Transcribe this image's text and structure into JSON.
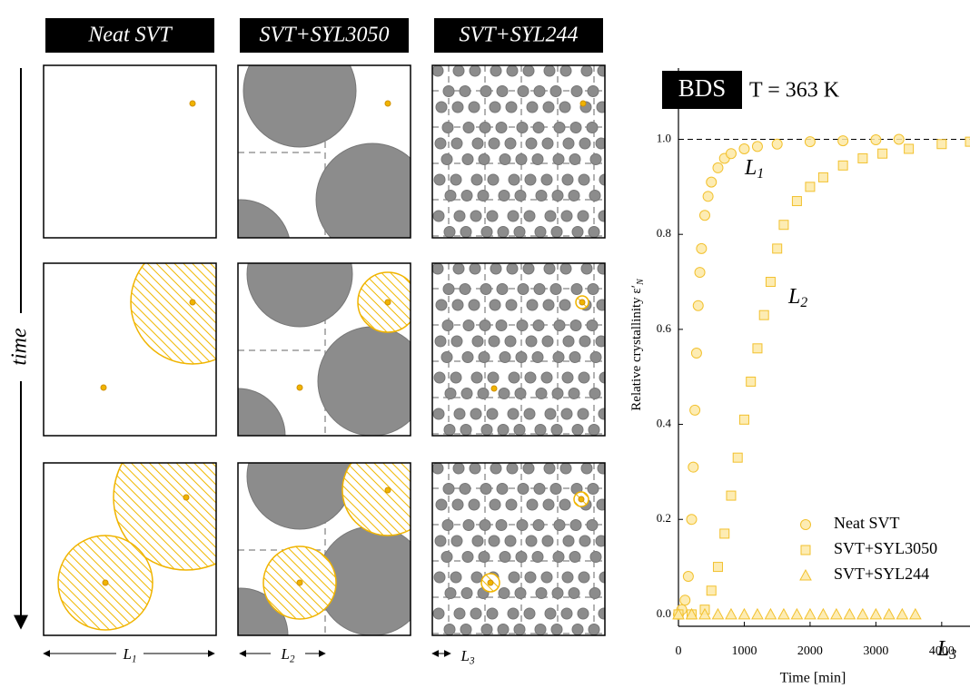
{
  "schematic": {
    "columns": [
      "Neat SVT",
      "SVT+SYL3050",
      "SVT+SYL244"
    ],
    "time_label": "time",
    "scale_labels": [
      {
        "text": "L",
        "sub": "1"
      },
      {
        "text": "L",
        "sub": "2"
      },
      {
        "text": "L",
        "sub": "3"
      }
    ]
  },
  "chart_data": {
    "type": "scatter",
    "badge": "BDS",
    "annotation": "T = 363 K",
    "x_label": "Time [min]",
    "y_label": {
      "text": "Relative crystallinity ε′",
      "sub": "N"
    },
    "xlim": [
      0,
      4430
    ],
    "ylim": [
      -0.025,
      1.15
    ],
    "xticks": [
      0,
      1000,
      2000,
      3000,
      4000
    ],
    "yticks": [
      {
        "value": 0,
        "label": "0.0"
      },
      {
        "value": 0.2,
        "label": "0.2"
      },
      {
        "value": 0.4,
        "label": "0.4"
      },
      {
        "value": 0.6,
        "label": "0.6"
      },
      {
        "value": 0.8,
        "label": "0.8"
      },
      {
        "value": 1,
        "label": "1.0"
      }
    ],
    "reference_line": 1,
    "legend": "lower right",
    "series": [
      {
        "name": "Neat SVT",
        "color": "#f2c12e",
        "marker": "circle",
        "x": [
          0,
          50,
          100,
          150,
          200,
          225,
          250,
          275,
          300,
          325,
          350,
          400,
          450,
          500,
          600,
          700,
          800,
          1000,
          1200,
          1500,
          2000,
          2500,
          3000,
          3350
        ],
        "values": [
          0,
          0.01,
          0.03,
          0.08,
          0.2,
          0.31,
          0.43,
          0.55,
          0.65,
          0.72,
          0.77,
          0.84,
          0.88,
          0.91,
          0.94,
          0.96,
          0.97,
          0.98,
          0.985,
          0.99,
          0.995,
          0.997,
          0.999,
          1.0
        ]
      },
      {
        "name": "SVT+SYL3050",
        "color": "#f2c12e",
        "marker": "square",
        "x": [
          0,
          200,
          400,
          500,
          600,
          700,
          800,
          900,
          1000,
          1100,
          1200,
          1300,
          1400,
          1500,
          1600,
          1800,
          2000,
          2200,
          2500,
          2800,
          3100,
          3500,
          4000,
          4430
        ],
        "values": [
          0,
          0,
          0.01,
          0.05,
          0.1,
          0.17,
          0.25,
          0.33,
          0.41,
          0.49,
          0.56,
          0.63,
          0.7,
          0.77,
          0.82,
          0.87,
          0.9,
          0.92,
          0.945,
          0.96,
          0.97,
          0.98,
          0.99,
          0.995
        ]
      },
      {
        "name": "SVT+SYL244",
        "color": "#f2c12e",
        "marker": "triangle",
        "x": [
          0,
          200,
          400,
          600,
          800,
          1000,
          1200,
          1400,
          1600,
          1800,
          2000,
          2200,
          2400,
          2600,
          2800,
          3000,
          3200,
          3400,
          3600
        ],
        "values": [
          0,
          0,
          0,
          0,
          0,
          0,
          0,
          0,
          0,
          0,
          0,
          0,
          0,
          0,
          0,
          0,
          0,
          0,
          0
        ]
      }
    ],
    "curve_labels": [
      {
        "text": "L",
        "sub": "1"
      },
      {
        "text": "L",
        "sub": "2"
      },
      {
        "text": "L",
        "sub": "3"
      }
    ]
  }
}
